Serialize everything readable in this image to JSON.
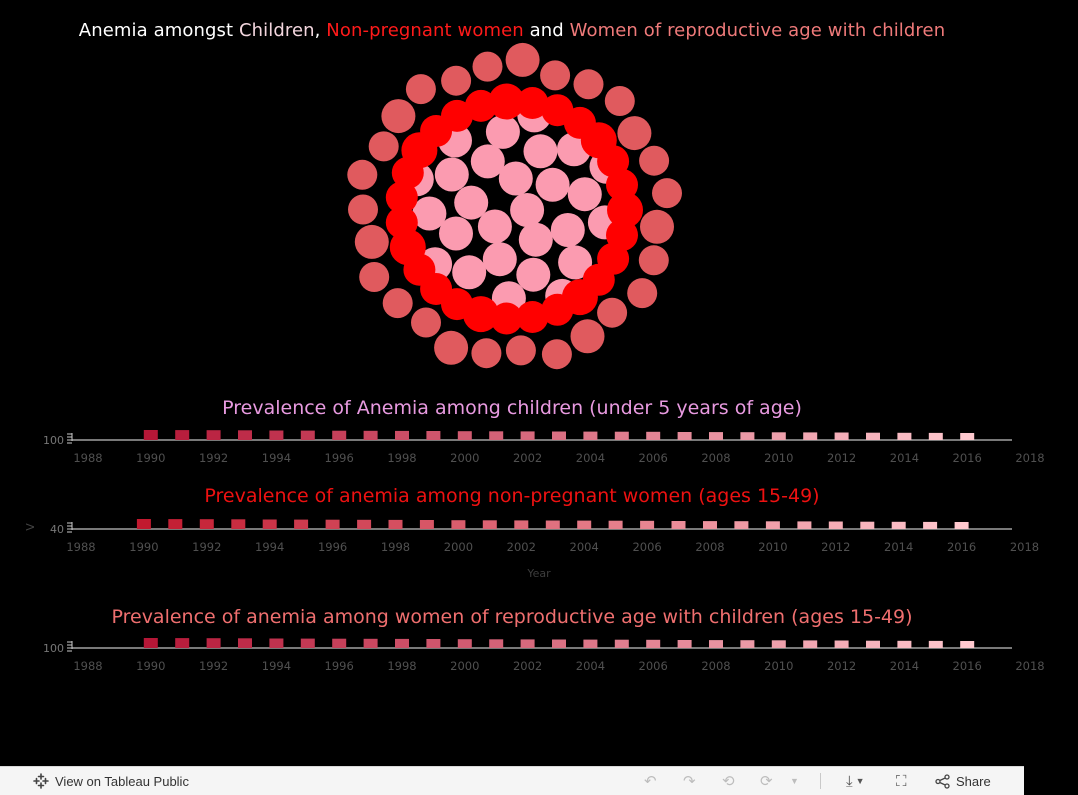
{
  "title": {
    "prefix": "Anemia amongst ",
    "children": "Children",
    "comma": ", ",
    "nonpregnant": "Non-pregnant women",
    "and": " and ",
    "women": "Women of reproductive age with children"
  },
  "colors": {
    "background": "#000000",
    "children": "#fb9bb0",
    "non_pregnant": "#ff0000",
    "women_with_children": "#e05a5e",
    "axis": "#f2f2f2",
    "tick_label": "#505050"
  },
  "chart_data": [
    {
      "type": "bubble",
      "title": "Anemia amongst Children, Non-pregnant women and Women of reproductive age with children",
      "series": [
        {
          "name": "Children",
          "color": "#fb9bb0",
          "count": 27
        },
        {
          "name": "Non-pregnant women",
          "color": "#ff0000",
          "count": 27
        },
        {
          "name": "Women of reproductive age with children",
          "color": "#e05a5e",
          "count": 27
        }
      ]
    },
    {
      "type": "bar",
      "title": "Prevalence of Anemia among children (under 5 years of age)",
      "title_color": "#e89ae0",
      "ytick": "100",
      "xticks": [
        "1988",
        "1990",
        "1992",
        "1994",
        "1996",
        "1998",
        "2000",
        "2002",
        "2004",
        "2006",
        "2008",
        "2010",
        "2012",
        "2014",
        "2016",
        "2018"
      ],
      "xlim": [
        1987.5,
        2018.5
      ],
      "x": [
        1990,
        1991,
        1992,
        1993,
        1994,
        1995,
        1996,
        1997,
        1998,
        1999,
        2000,
        2001,
        2002,
        2003,
        2004,
        2005,
        2006,
        2007,
        2008,
        2009,
        2010,
        2011,
        2012,
        2013,
        2014,
        2015,
        2016
      ],
      "values": [
        100,
        100,
        100,
        100,
        100,
        100,
        100,
        100,
        100,
        100,
        100,
        100,
        100,
        100,
        100,
        100,
        100,
        100,
        100,
        100,
        100,
        100,
        100,
        100,
        100,
        100,
        100
      ],
      "bar_color_start": "#b51737",
      "bar_color_end": "#ffc9cf"
    },
    {
      "type": "bar",
      "title": "Prevalence of anemia among non-pregnant women (ages 15-49)",
      "title_color": "#ee1111",
      "ytick": "40",
      "ylabel": "V",
      "xlabel": "Year",
      "xticks": [
        "1988",
        "1990",
        "1992",
        "1994",
        "1996",
        "1998",
        "2000",
        "2002",
        "2004",
        "2006",
        "2008",
        "2010",
        "2012",
        "2014",
        "2016",
        "2018"
      ],
      "xlim": [
        1987.5,
        2018.5
      ],
      "x": [
        1990,
        1991,
        1992,
        1993,
        1994,
        1995,
        1996,
        1997,
        1998,
        1999,
        2000,
        2001,
        2002,
        2003,
        2004,
        2005,
        2006,
        2007,
        2008,
        2009,
        2010,
        2011,
        2012,
        2013,
        2014,
        2015,
        2016
      ],
      "values": [
        40,
        40,
        40,
        40,
        40,
        40,
        40,
        40,
        40,
        40,
        40,
        40,
        40,
        40,
        40,
        40,
        40,
        40,
        40,
        40,
        40,
        40,
        40,
        40,
        40,
        40,
        40
      ],
      "bar_color_start": "#c2192f",
      "bar_color_end": "#ffc9cf"
    },
    {
      "type": "bar",
      "title": "Prevalence of anemia among women of reproductive age with children (ages 15-49)",
      "title_color": "#ef6f6f",
      "ytick": "100",
      "xticks": [
        "1988",
        "1990",
        "1992",
        "1994",
        "1996",
        "1998",
        "2000",
        "2002",
        "2004",
        "2006",
        "2008",
        "2010",
        "2012",
        "2014",
        "2016",
        "2018"
      ],
      "xlim": [
        1987.5,
        2018.5
      ],
      "x": [
        1990,
        1991,
        1992,
        1993,
        1994,
        1995,
        1996,
        1997,
        1998,
        1999,
        2000,
        2001,
        2002,
        2003,
        2004,
        2005,
        2006,
        2007,
        2008,
        2009,
        2010,
        2011,
        2012,
        2013,
        2014,
        2015,
        2016
      ],
      "values": [
        100,
        100,
        100,
        100,
        100,
        100,
        100,
        100,
        100,
        100,
        100,
        100,
        100,
        100,
        100,
        100,
        100,
        100,
        100,
        100,
        100,
        100,
        100,
        100,
        100,
        100,
        100
      ],
      "bar_color_start": "#b51737",
      "bar_color_end": "#ffc9cf"
    }
  ],
  "footer": {
    "view_label": "View on Tableau Public",
    "share_label": "Share",
    "icons": [
      "tableau-icon",
      "undo-icon",
      "redo-icon",
      "revert-icon",
      "refresh-icon",
      "dropdown-icon",
      "download-icon",
      "fullscreen-icon",
      "share-icon"
    ]
  }
}
